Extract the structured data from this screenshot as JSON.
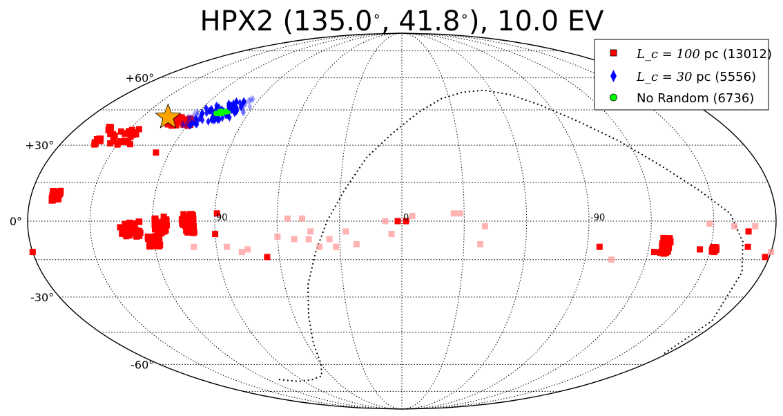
{
  "chart_data": {
    "type": "scatter",
    "projection": "mollweide (aitoff-like), galactic coordinates",
    "title": "HPX2 (135.0°, 41.8°), 10.0 EV",
    "title_parts": {
      "prefix": "HPX2 (135.0",
      "mid": ", 41.8",
      "suffix": "), 10.0 EV",
      "degree": "∘"
    },
    "lat_tick_labels": [
      "+60°",
      "+30°",
      "0°",
      "-30°",
      "-60°"
    ],
    "lat_tick_values": [
      60,
      30,
      0,
      -30,
      -60
    ],
    "lon_tick_labels": [
      "90",
      "0",
      "-90"
    ],
    "lon_tick_values": [
      90,
      0,
      -90
    ],
    "grid": true,
    "legend_position": "top-right",
    "legend": [
      {
        "math": "L_c = 100",
        "label": " pc (13012)",
        "color": "#ff0000",
        "marker": "square"
      },
      {
        "math": "L_c = 30",
        "label": " pc (5556)",
        "color": "#0000ff",
        "marker": "diamond"
      },
      {
        "math": "",
        "label": "No Random (6736)",
        "color": "#00ff00",
        "marker": "circle"
      }
    ],
    "source": {
      "lon": 135.0,
      "lat": 41.8,
      "marker": "star",
      "color": "#ffa500"
    },
    "series": [
      {
        "name": "Lc=100 pc",
        "color": "#ff0000",
        "marker": "square",
        "clusters": [
          {
            "lon": 153,
            "lat": 34,
            "extent_lon": 10,
            "extent_lat": 4
          },
          {
            "lon": 125,
            "lat": 40,
            "extent_lon": 8,
            "extent_lat": 2
          },
          {
            "lon": 168,
            "lat": 10,
            "extent_lon": 2,
            "extent_lat": 2
          },
          {
            "lon": 131,
            "lat": -3,
            "extent_lon": 5,
            "extent_lat": 3
          },
          {
            "lon": 120,
            "lat": -8,
            "extent_lon": 3,
            "extent_lat": 2
          },
          {
            "lon": 116,
            "lat": -2,
            "extent_lon": 3,
            "extent_lat": 4
          },
          {
            "lon": 103,
            "lat": -1,
            "extent_lon": 3,
            "extent_lat": 4
          },
          {
            "lon": -128,
            "lat": -10,
            "extent_lon": 2,
            "extent_lat": 4
          },
          {
            "lon": -152,
            "lat": -11,
            "extent_lon": 1,
            "extent_lat": 1
          }
        ],
        "points": [
          [
            127,
            27
          ],
          [
            89,
            3
          ],
          [
            90,
            -5
          ],
          [
            66,
            -14
          ],
          [
            -123,
            -12
          ],
          [
            -145,
            -11
          ],
          [
            180,
            -12
          ],
          [
            -178,
            -14
          ],
          [
            2,
            0
          ],
          [
            -2,
            0
          ],
          [
            -96,
            -10
          ],
          [
            -167,
            -4
          ],
          [
            -168,
            -10
          ]
        ]
      },
      {
        "name": "Lc=100 pc (faint)",
        "color": "#ff9999",
        "marker": "square",
        "points": [
          [
            55,
            1
          ],
          [
            52,
            -7
          ],
          [
            45,
            -7
          ],
          [
            40,
            -10
          ],
          [
            35,
            -7
          ],
          [
            27,
            -4
          ],
          [
            22,
            -9
          ],
          [
            8,
            0
          ],
          [
            5,
            -5
          ],
          [
            -5,
            2
          ],
          [
            -25,
            3
          ],
          [
            -28,
            3
          ],
          [
            -40,
            -2
          ],
          [
            -38,
            -9
          ],
          [
            85,
            -10
          ],
          [
            78,
            -12
          ],
          [
            75,
            -11
          ],
          [
            60,
            -6
          ],
          [
            101,
            -10
          ],
          [
            -103,
            -15
          ],
          [
            -148,
            -1
          ],
          [
            -160,
            -2
          ],
          [
            -180,
            -12
          ],
          [
            -170,
            -2
          ],
          [
            32,
            -10
          ],
          [
            44,
            -4
          ],
          [
            48,
            1
          ]
        ]
      },
      {
        "name": "Lc=30 pc",
        "color": "#0000ff",
        "marker": "diamond",
        "clusters": [
          {
            "lon": 108,
            "lat": 44,
            "extent_lon": 16,
            "extent_lat": 4
          }
        ]
      },
      {
        "name": "No Random",
        "color": "#00ff00",
        "marker": "circle",
        "clusters": [
          {
            "lon": 106,
            "lat": 44,
            "extent_lon": 3,
            "extent_lat": 1
          }
        ]
      }
    ]
  }
}
